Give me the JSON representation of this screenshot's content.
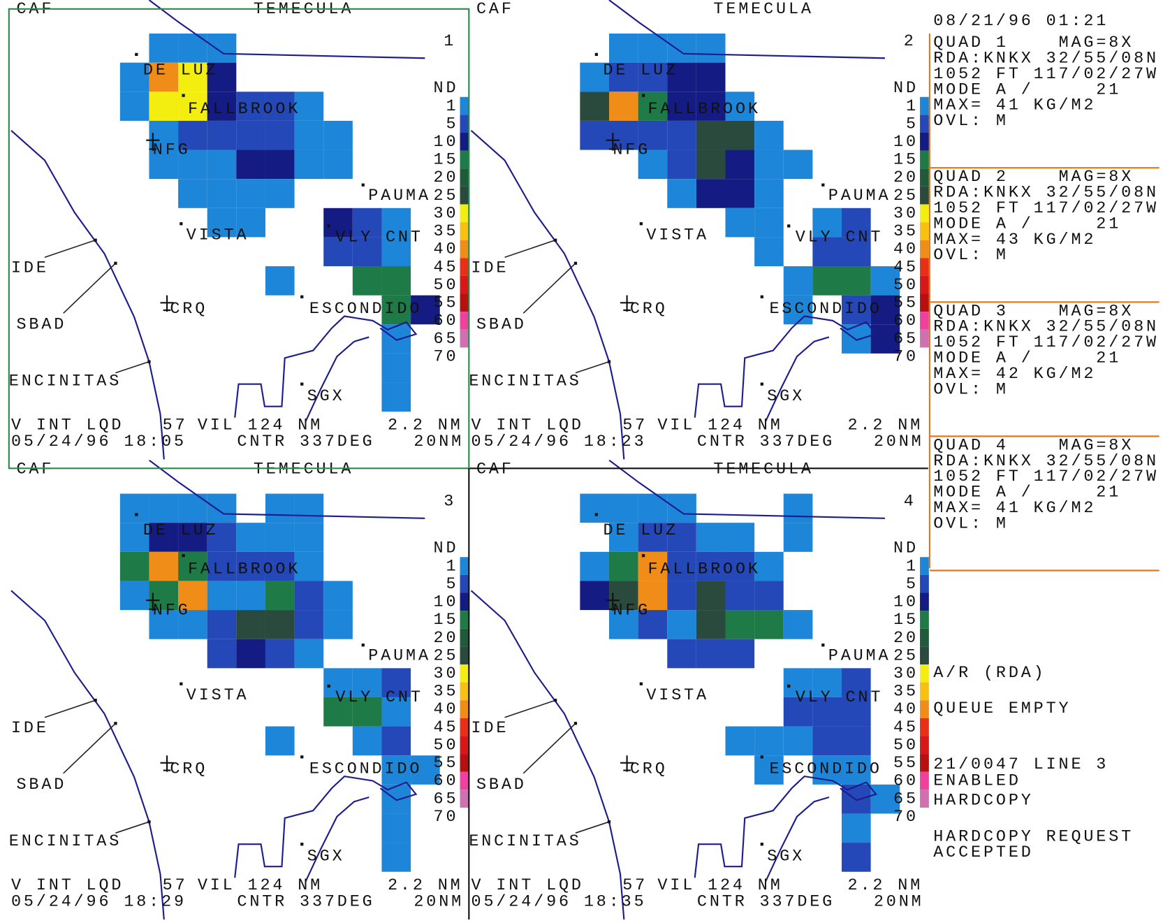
{
  "quads": [
    {
      "number": "1",
      "date_time": "05/24/96 18:05"
    },
    {
      "number": "2",
      "date_time": "05/24/96 18:23"
    },
    {
      "number": "3",
      "date_time": "05/24/96 18:29"
    },
    {
      "number": "4",
      "date_time": "05/24/96 18:35"
    }
  ],
  "map_labels": [
    "CAF",
    "TEMECULA",
    "DE LUZ",
    "FALLBROOK",
    "NFG",
    "PAUMA",
    "VISTA",
    "VLY CNT",
    "IDE",
    "CRQ",
    "ESCONDIDO",
    "SBAD",
    "ENCINITAS",
    "SGX"
  ],
  "legend_labels": [
    "ND",
    "1",
    "5",
    "10",
    "15",
    "20",
    "25",
    "30",
    "35",
    "40",
    "45",
    "50",
    "55",
    "60",
    "65",
    "70"
  ],
  "footer": {
    "line1": [
      "V INT LQD",
      "57",
      "VIL 124 NM",
      "2.2 NM"
    ],
    "center": "CNTR 337DEG",
    "range": "20NM"
  },
  "side_panel": {
    "timestamp": "08/21/96 01:21",
    "quad_info": [
      {
        "title": "QUAD 1",
        "mag": "MAG=8X",
        "rda": "RDA:KNKX 32/55/08N",
        "height": "1052 FT 117/02/27W",
        "mode": "MODE A /     21",
        "max": "MAX= 41 KG/M2",
        "ovl": "OVL: M"
      },
      {
        "title": "QUAD 2",
        "mag": "MAG=8X",
        "rda": "RDA:KNKX 32/55/08N",
        "height": "1052 FT 117/02/27W",
        "mode": "MODE A /     21",
        "max": "MAX= 43 KG/M2",
        "ovl": "OVL: M"
      },
      {
        "title": "QUAD 3",
        "mag": "MAG=8X",
        "rda": "RDA:KNKX 32/55/08N",
        "height": "1052 FT 117/02/27W",
        "mode": "MODE A /     21",
        "max": "MAX= 42 KG/M2",
        "ovl": "OVL: M"
      },
      {
        "title": "QUAD 4",
        "mag": "MAG=8X",
        "rda": "RDA:KNKX 32/55/08N",
        "height": "1052 FT 117/02/27W",
        "mode": "MODE A /     21",
        "max": "MAX= 41 KG/M2",
        "ovl": "OVL: M"
      }
    ],
    "status": {
      "ar": "A/R (RDA)",
      "queue": "QUEUE EMPTY",
      "line": "21/0047 LINE 3",
      "enabled": "ENABLED",
      "hardcopy": "HARDCOPY",
      "request": [
        "HARDCOPY REQUEST",
        "ACCEPTED"
      ]
    }
  }
}
